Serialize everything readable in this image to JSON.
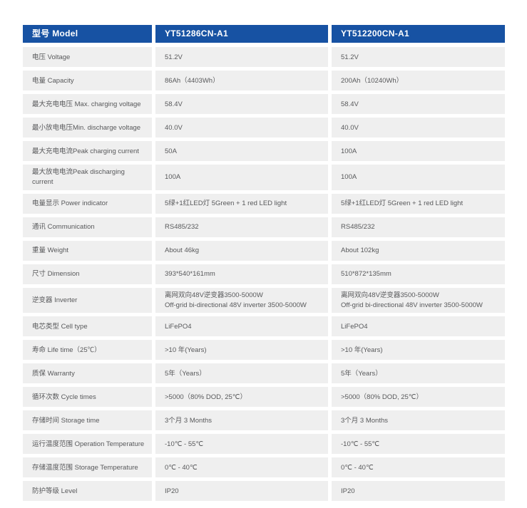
{
  "colors": {
    "header_bg": "#1752a3",
    "header_text": "#ffffff",
    "row_bg": "#efefef",
    "body_text": "#58595b",
    "page_bg": "#ffffff"
  },
  "table": {
    "header": {
      "model_label": "型号 Model",
      "model_1": "YT51286CN-A1",
      "model_2": "YT512200CN-A1"
    },
    "rows": [
      {
        "label": "电压 Voltage",
        "model_1": "51.2V",
        "model_2": "51.2V"
      },
      {
        "label": "电量 Capacity",
        "model_1": "86Ah（4403Wh）",
        "model_2": "200Ah（10240Wh）"
      },
      {
        "label": "最大充电电压 Max. charging voltage",
        "model_1": "58.4V",
        "model_2": "58.4V"
      },
      {
        "label": "最小放电电压Min. discharge voltage",
        "model_1": "40.0V",
        "model_2": "40.0V"
      },
      {
        "label": "最大充电电流Peak charging current",
        "model_1": "50A",
        "model_2": "100A"
      },
      {
        "label": "最大放电电流Peak discharging current",
        "model_1": "100A",
        "model_2": "100A"
      },
      {
        "label": "电量显示 Power indicator",
        "model_1": "5绿+1红LED灯  5Green + 1 red LED light",
        "model_2": "5绿+1红LED灯  5Green + 1 red LED light"
      },
      {
        "label": "通讯 Communication",
        "model_1": "RS485/232",
        "model_2": "RS485/232"
      },
      {
        "label": "重量 Weight",
        "model_1": "About 46kg",
        "model_2": "About 102kg"
      },
      {
        "label": "尺寸 Dimension",
        "model_1": "393*540*161mm",
        "model_2": "510*872*135mm"
      },
      {
        "label": "逆变器 Inverter",
        "model_1": "离网双向48V逆变器3500-5000W\nOff-grid bi-directional 48V inverter 3500-5000W",
        "model_2": "离网双向48V逆变器3500-5000W\nOff-grid bi-directional 48V inverter 3500-5000W"
      },
      {
        "label": "电芯类型 Cell type",
        "model_1": "LiFePO4",
        "model_2": "LiFePO4"
      },
      {
        "label": "寿命 Life time（25℃）",
        "model_1": ">10 年(Years)",
        "model_2": ">10 年(Years)"
      },
      {
        "label": "质保 Warranty",
        "model_1": "5年（Years）",
        "model_2": "5年（Years）"
      },
      {
        "label": "循环次数 Cycle times",
        "model_1": ">5000（80% DOD, 25℃）",
        "model_2": ">5000（80% DOD, 25℃）"
      },
      {
        "label": "存储时间 Storage time",
        "model_1": "3个月  3 Months",
        "model_2": "3个月  3 Months"
      },
      {
        "label": "运行温度范围 Operation Temperature",
        "model_1": "-10℃ - 55℃",
        "model_2": "-10℃ - 55℃"
      },
      {
        "label": "存储温度范围 Storage Temperature",
        "model_1": "0℃ - 40℃",
        "model_2": "0℃ - 40℃"
      },
      {
        "label": "防护等级 Level",
        "model_1": "IP20",
        "model_2": "IP20"
      }
    ]
  }
}
